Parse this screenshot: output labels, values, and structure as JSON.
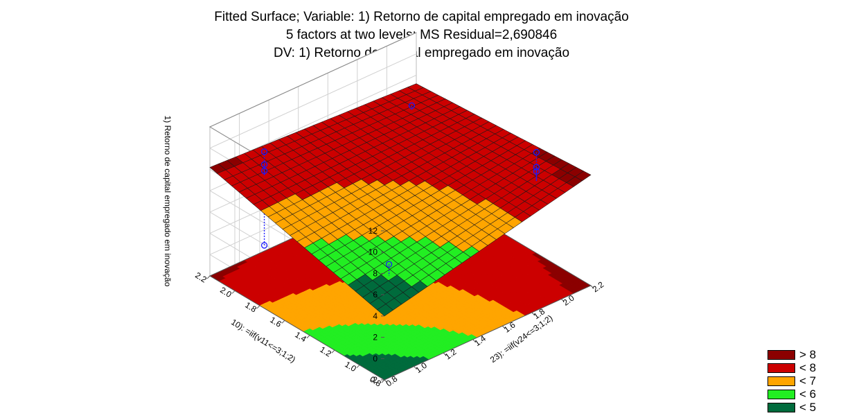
{
  "chart_data": {
    "type": "surface3d",
    "title": "Fitted Surface; Variable: 1) Retorno de capital empregado em inovação",
    "subtitle": "5 factors at two levels; MS Residual=2,690846",
    "subtitle2": "DV: 1) Retorno de capital empregado em inovação",
    "xlabel": "10): =iif(v11<=3;1;2)",
    "ylabel": "23): =iif(v24<=3;1;2)",
    "zlabel": "1) Retorno de capital empregado em inovação",
    "x_ticks": [
      "0.8",
      "1.0",
      "1.2",
      "1.4",
      "1.6",
      "1.8",
      "2.0",
      "2.2"
    ],
    "y_ticks": [
      "0.8",
      "1.0",
      "1.2",
      "1.4",
      "1.6",
      "1.8",
      "2.0",
      "2.2"
    ],
    "z_ticks": [
      "-2",
      "0",
      "2",
      "4",
      "6",
      "8",
      "10",
      "12"
    ],
    "xlim": [
      0.8,
      2.2
    ],
    "ylim": [
      0.8,
      2.2
    ],
    "zlim": [
      -2,
      12
    ],
    "surface_corners": {
      "x_low_y_low": 4.0,
      "x_high_y_low": 8.2,
      "x_low_y_high": 8.4,
      "x_high_y_high": 7.2
    },
    "observed_points": [
      {
        "x": 2.0,
        "y": 1.0,
        "z": [
          1.0,
          8.0,
          8.6,
          9.8
        ]
      },
      {
        "x": 1.0,
        "y": 2.0,
        "z": [
          6.2,
          8.6,
          9.0,
          10.4
        ]
      },
      {
        "x": 1.0,
        "y": 1.0,
        "z": [
          2.2,
          3.5,
          4.6,
          6.2
        ]
      },
      {
        "x": 2.0,
        "y": 2.0,
        "z": [
          5.0,
          7.8
        ]
      }
    ],
    "legend": {
      "placement": "bottom-right",
      "entries": [
        {
          "label": "> 8",
          "color": "#8b0000"
        },
        {
          "label": "< 8",
          "color": "#cc0000"
        },
        {
          "label": "< 7",
          "color": "#ffa500"
        },
        {
          "label": "< 6",
          "color": "#22ee22"
        },
        {
          "label": "< 5",
          "color": "#006b3c"
        }
      ]
    }
  }
}
